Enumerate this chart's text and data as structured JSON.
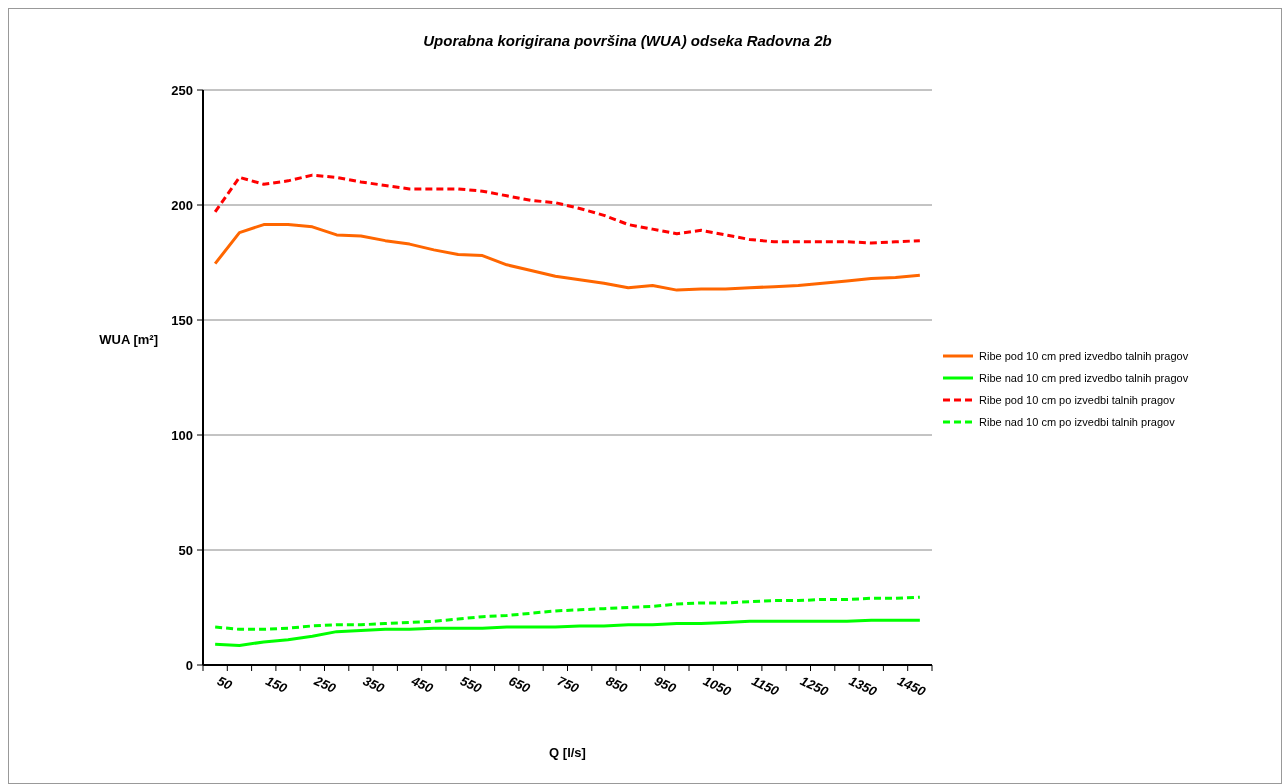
{
  "chart_data": {
    "type": "line",
    "title": "Uporabna korigirana površina (WUA) odseka Radovna 2b",
    "xlabel": "Q [l/s]",
    "ylabel": "WUA [m²]",
    "categories": [
      "50",
      null,
      "150",
      null,
      "250",
      null,
      "350",
      null,
      "450",
      null,
      "550",
      null,
      "650",
      null,
      "750",
      null,
      "850",
      null,
      "950",
      null,
      "1050",
      null,
      "1150",
      null,
      "1250",
      null,
      "1350",
      null,
      "1450",
      null
    ],
    "series": [
      {
        "name": "Ribe pod 10 cm pred izvedbo talnih pragov",
        "color": "#ff6600",
        "line_style": "solid",
        "values": [
          174.5,
          188,
          191.5,
          191.5,
          190.5,
          187,
          186.5,
          184.5,
          183,
          180.5,
          178.5,
          178,
          174,
          171.5,
          169,
          167.5,
          166,
          164,
          165,
          163,
          163.5,
          163.5,
          164,
          164.5,
          165,
          166,
          167,
          168,
          168.5,
          169.5
        ]
      },
      {
        "name": "Ribe nad 10 cm pred izvedbo talnih pragov",
        "color": "#00ff00",
        "line_style": "solid",
        "values": [
          9,
          8.5,
          10,
          11,
          12.5,
          14.5,
          15,
          15.5,
          15.5,
          16,
          16,
          16,
          16.5,
          16.5,
          16.5,
          17,
          17,
          17.5,
          17.5,
          18,
          18,
          18.5,
          19,
          19,
          19,
          19,
          19,
          19.5,
          19.5,
          19.5
        ]
      },
      {
        "name": "Ribe pod 10 cm po izvedbi talnih pragov",
        "color": "#ff0000",
        "line_style": "dashed",
        "values": [
          197,
          212,
          209,
          210.5,
          213,
          212,
          210,
          208.5,
          207,
          207,
          207,
          206,
          204,
          202,
          201,
          198.5,
          195.5,
          191.5,
          189.5,
          187.5,
          189,
          187,
          185,
          184,
          184,
          184,
          184,
          183.5,
          184,
          184.5
        ]
      },
      {
        "name": "Ribe nad 10 cm po izvedbi talnih pragov",
        "color": "#00ff00",
        "line_style": "dashed",
        "values": [
          16.5,
          15.5,
          15.5,
          16,
          17,
          17.5,
          17.5,
          18,
          18.5,
          19,
          20,
          21,
          21.5,
          22.5,
          23.5,
          24,
          24.5,
          25,
          25.5,
          26.5,
          27,
          27,
          27.5,
          28,
          28,
          28.5,
          28.5,
          29,
          29,
          29.5
        ]
      }
    ],
    "ylim": [
      0,
      250
    ],
    "yticks": [
      0,
      50,
      100,
      150,
      200,
      250
    ],
    "grid": "y",
    "legend": "right",
    "marker": "none"
  }
}
